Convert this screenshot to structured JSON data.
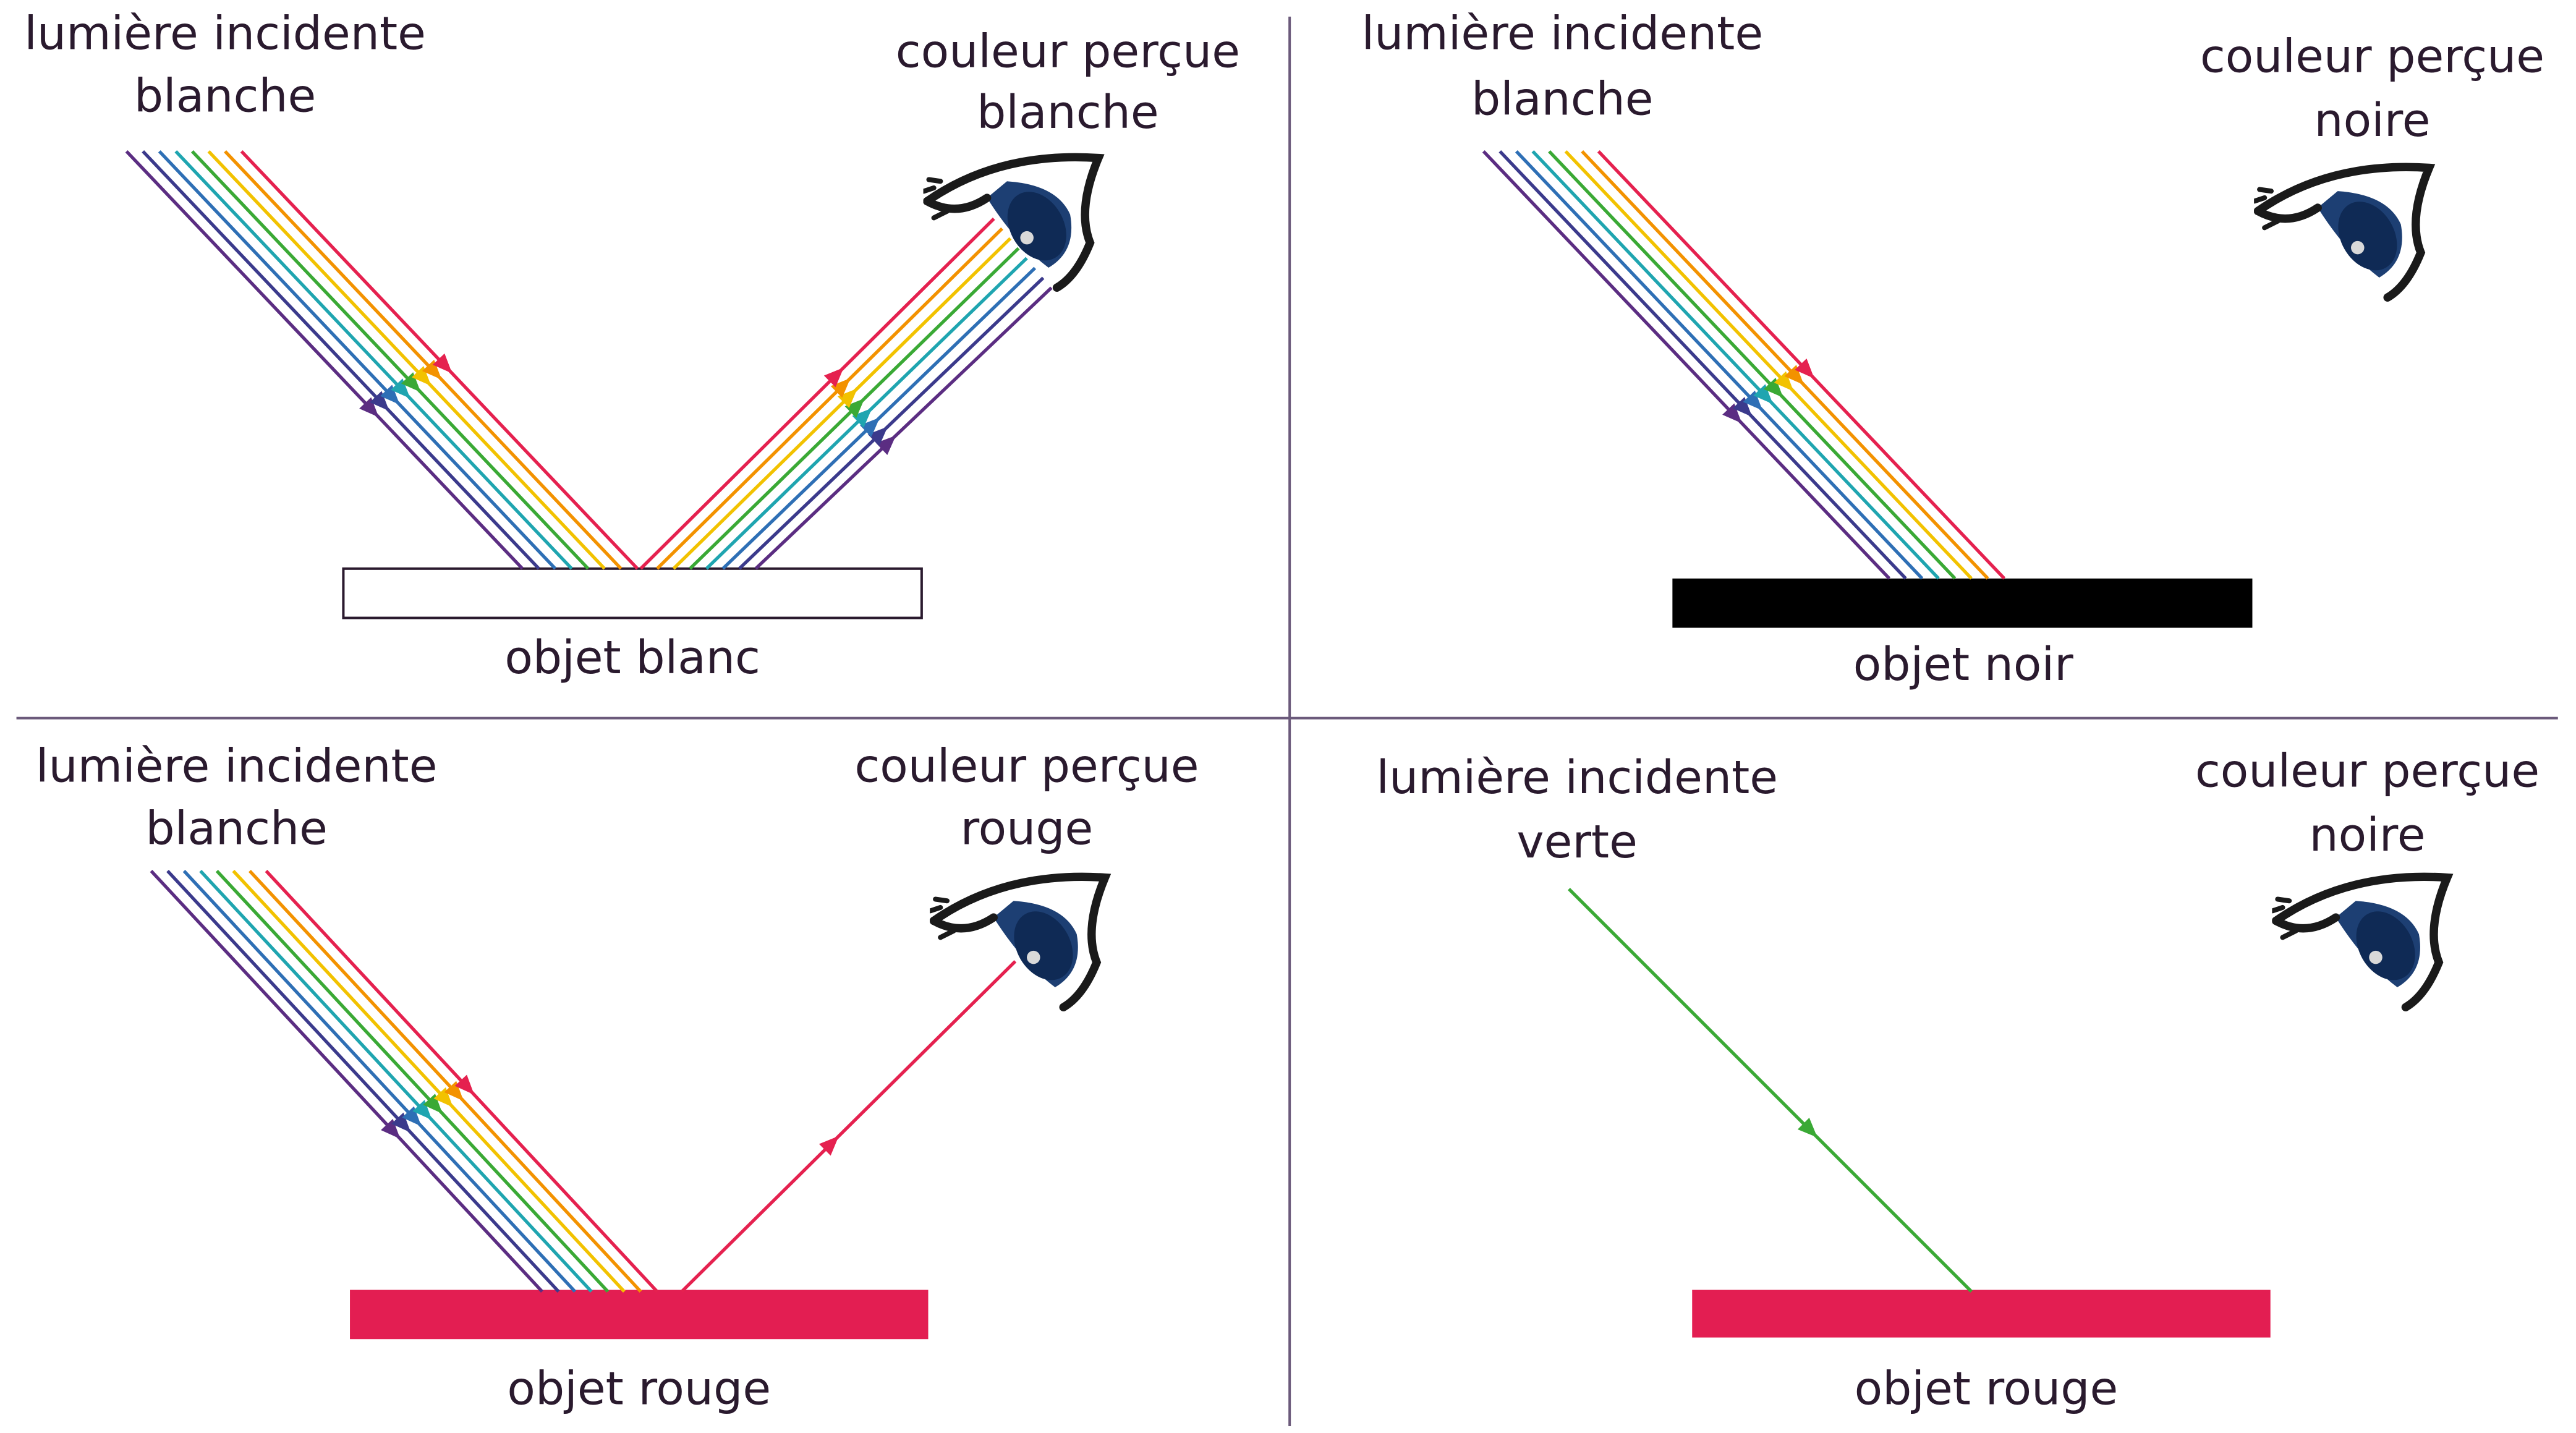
{
  "panels": [
    {
      "incident": [
        "lumière incidente",
        "blanche"
      ],
      "perceived": [
        "couleur perçue",
        "blanche"
      ],
      "object": "objet blanc"
    },
    {
      "incident": [
        "lumière incidente",
        "blanche"
      ],
      "perceived": [
        "couleur perçue",
        "noire"
      ],
      "object": "objet noir"
    },
    {
      "incident": [
        "lumière incidente",
        "blanche"
      ],
      "perceived": [
        "couleur perçue",
        "rouge"
      ],
      "object": "objet rouge"
    },
    {
      "incident": [
        "lumière incidente",
        "verte"
      ],
      "perceived": [
        "couleur perçue",
        "noire"
      ],
      "object": "objet rouge"
    }
  ]
}
